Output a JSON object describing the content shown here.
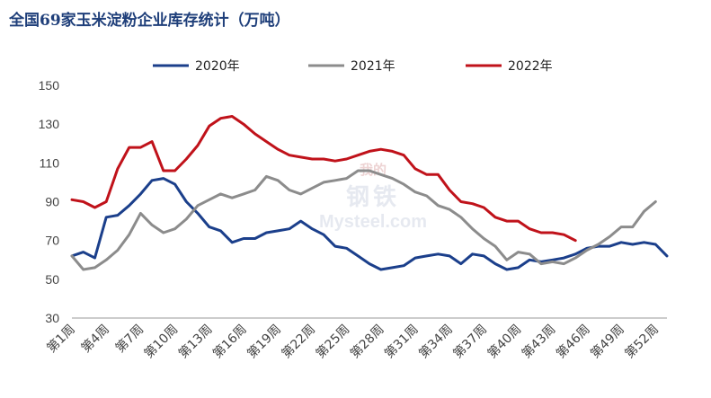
{
  "title": "全国69家玉米淀粉企业库存统计（万吨）",
  "watermark": {
    "top": "我的",
    "mid": "钢铁",
    "bot": "Mysteel.com"
  },
  "chart_data": {
    "type": "line",
    "title": "全国69家玉米淀粉企业库存统计（万吨）",
    "ylim": [
      30,
      150
    ],
    "yticks": [
      30,
      50,
      70,
      90,
      110,
      130,
      150
    ],
    "x": [
      1,
      2,
      3,
      4,
      5,
      6,
      7,
      8,
      9,
      10,
      11,
      12,
      13,
      14,
      15,
      16,
      17,
      18,
      19,
      20,
      21,
      22,
      23,
      24,
      25,
      26,
      27,
      28,
      29,
      30,
      31,
      32,
      33,
      34,
      35,
      36,
      37,
      38,
      39,
      40,
      41,
      42,
      43,
      44,
      45,
      46,
      47,
      48,
      49,
      50,
      51,
      52,
      53
    ],
    "xtick_labels": [
      "第1周",
      "第4周",
      "第7周",
      "第10周",
      "第13周",
      "第16周",
      "第19周",
      "第22周",
      "第25周",
      "第28周",
      "第31周",
      "第34周",
      "第37周",
      "第40周",
      "第43周",
      "第46周",
      "第49周",
      "第52周"
    ],
    "xtick_positions": [
      1,
      4,
      7,
      10,
      13,
      16,
      19,
      22,
      25,
      28,
      31,
      34,
      37,
      40,
      43,
      46,
      49,
      52
    ],
    "legend_position": "top",
    "grid": false,
    "series": [
      {
        "name": "2020年",
        "color": "#1b3f8b",
        "values": [
          62,
          64,
          61,
          82,
          83,
          88,
          94,
          101,
          102,
          99,
          90,
          84,
          77,
          75,
          69,
          71,
          71,
          74,
          75,
          76,
          80,
          76,
          73,
          67,
          66,
          62,
          58,
          55,
          56,
          57,
          61,
          62,
          63,
          62,
          58,
          63,
          62,
          58,
          55,
          56,
          60,
          59,
          60,
          61,
          63,
          66,
          67,
          67,
          69,
          68,
          69,
          68,
          62
        ]
      },
      {
        "name": "2021年",
        "color": "#8c8c8c",
        "values": [
          62,
          55,
          56,
          60,
          65,
          73,
          84,
          78,
          74,
          76,
          81,
          88,
          91,
          94,
          92,
          94,
          96,
          103,
          101,
          96,
          94,
          97,
          100,
          101,
          102,
          106,
          106,
          104,
          102,
          99,
          95,
          93,
          88,
          86,
          82,
          76,
          71,
          67,
          60,
          64,
          63,
          58,
          59,
          58,
          61,
          65,
          68,
          72,
          77,
          77,
          85,
          90,
          null
        ]
      },
      {
        "name": "2022年",
        "color": "#c0121a",
        "values": [
          91,
          90,
          87,
          90,
          107,
          118,
          118,
          121,
          106,
          106,
          112,
          119,
          129,
          133,
          134,
          130,
          125,
          121,
          117,
          114,
          113,
          112,
          112,
          111,
          112,
          114,
          116,
          117,
          116,
          114,
          107,
          104,
          104,
          96,
          90,
          89,
          87,
          82,
          80,
          80,
          76,
          74,
          74,
          73,
          70,
          null,
          null,
          null,
          null,
          null,
          null,
          null,
          null
        ]
      }
    ]
  }
}
